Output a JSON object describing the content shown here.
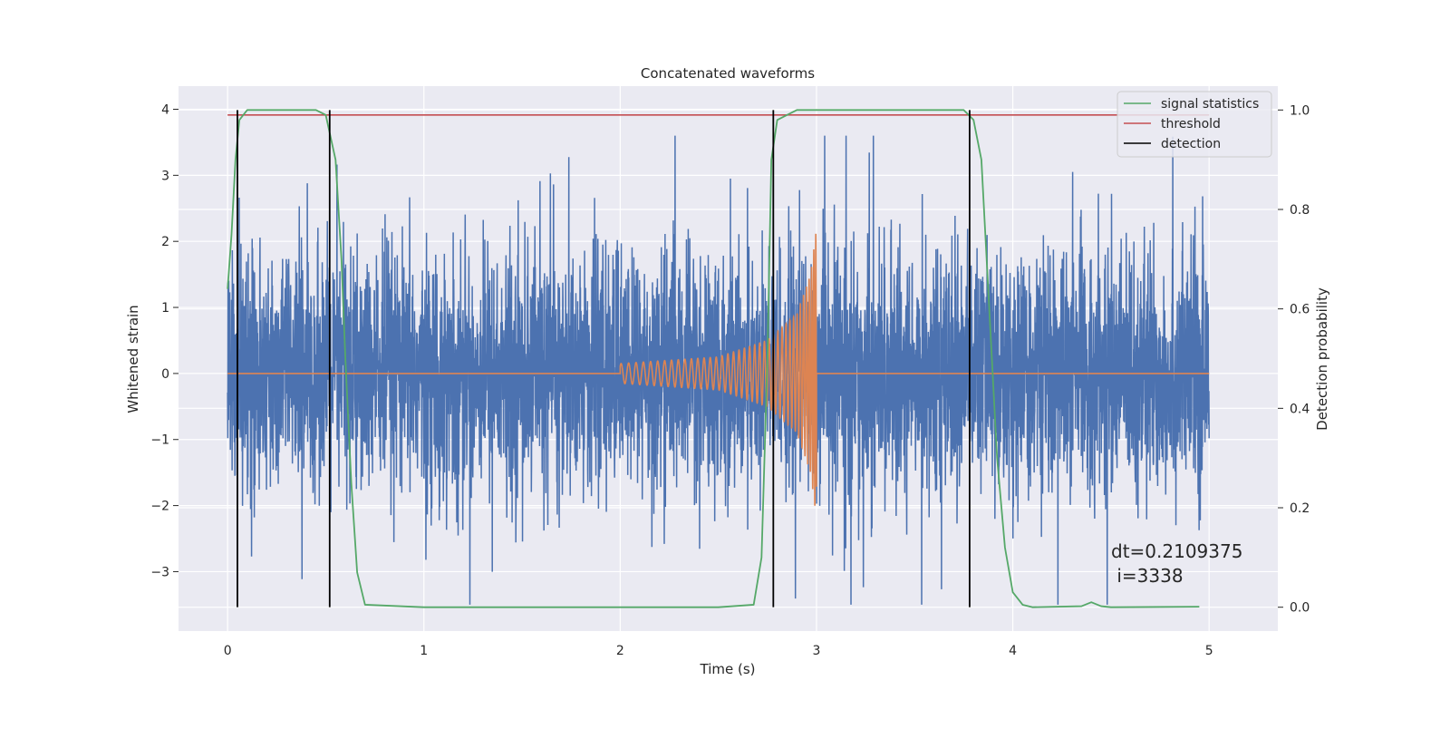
{
  "chart_data": {
    "type": "line",
    "title": "Concatenated waveforms",
    "xlabel": "Time (s)",
    "ylabel": "Whitened strain",
    "ylabel_right": "Detection probability",
    "xlim": [
      -0.25,
      5.35
    ],
    "ylim": [
      -3.9,
      4.35
    ],
    "ylim_right": [
      -0.048,
      1.048
    ],
    "x_ticks": [
      0,
      1,
      2,
      3,
      4,
      5
    ],
    "y_ticks": [
      -3,
      -2,
      -1,
      0,
      1,
      2,
      3,
      4
    ],
    "y_ticks_right": [
      0.0,
      0.2,
      0.4,
      0.6,
      0.8,
      1.0
    ],
    "x_tick_labels": [
      "0",
      "1",
      "2",
      "3",
      "4",
      "5"
    ],
    "y_tick_labels": [
      "−3",
      "−2",
      "−1",
      "0",
      "1",
      "2",
      "3",
      "4"
    ],
    "y_tick_labels_right": [
      "0.0",
      "0.2",
      "0.4",
      "0.6",
      "0.8",
      "1.0"
    ],
    "grid": true,
    "legend_position": "top-right",
    "legend": [
      {
        "label": "signal statistics",
        "color": "#55a868"
      },
      {
        "label": "threshold",
        "color": "#c44e52"
      },
      {
        "label": "detection",
        "color": "#000000"
      }
    ],
    "series": [
      {
        "role": "whitened-strain-noise",
        "color": "#4c72b0",
        "x_range": [
          0,
          5
        ],
        "noise_core_std": 0.85,
        "approx_peak": 3.6,
        "approx_trough": -3.5
      },
      {
        "role": "injected-chirp",
        "color": "#dd8452",
        "x_range": [
          0,
          5
        ],
        "chirp_start": 2.0,
        "chirp_end": 3.0,
        "amplitude_points": [
          [
            2.0,
            0.15
          ],
          [
            2.5,
            0.25
          ],
          [
            2.75,
            0.5
          ],
          [
            2.9,
            0.9
          ],
          [
            2.97,
            1.5
          ],
          [
            3.0,
            2.2
          ]
        ]
      },
      {
        "name": "signal statistics",
        "axis": "right",
        "color": "#55a868",
        "points": [
          [
            0.0,
            0.64
          ],
          [
            0.02,
            0.75
          ],
          [
            0.04,
            0.9
          ],
          [
            0.06,
            0.98
          ],
          [
            0.1,
            1.0
          ],
          [
            0.45,
            1.0
          ],
          [
            0.5,
            0.99
          ],
          [
            0.55,
            0.9
          ],
          [
            0.58,
            0.7
          ],
          [
            0.6,
            0.5
          ],
          [
            0.63,
            0.25
          ],
          [
            0.66,
            0.07
          ],
          [
            0.7,
            0.005
          ],
          [
            1.0,
            0.0
          ],
          [
            2.5,
            0.0
          ],
          [
            2.68,
            0.005
          ],
          [
            2.72,
            0.1
          ],
          [
            2.75,
            0.5
          ],
          [
            2.77,
            0.9
          ],
          [
            2.8,
            0.98
          ],
          [
            2.9,
            1.0
          ],
          [
            3.75,
            1.0
          ],
          [
            3.8,
            0.98
          ],
          [
            3.84,
            0.9
          ],
          [
            3.88,
            0.6
          ],
          [
            3.92,
            0.3
          ],
          [
            3.96,
            0.12
          ],
          [
            4.0,
            0.03
          ],
          [
            4.05,
            0.005
          ],
          [
            4.1,
            0.0
          ],
          [
            4.35,
            0.002
          ],
          [
            4.4,
            0.01
          ],
          [
            4.45,
            0.002
          ],
          [
            4.5,
            0.0
          ],
          [
            4.95,
            0.001
          ]
        ]
      },
      {
        "name": "threshold",
        "axis": "right",
        "color": "#c44e52",
        "value": 0.99,
        "x_range": [
          0,
          5
        ]
      },
      {
        "name": "detection",
        "axis": "right",
        "color": "#000000",
        "x": [
          0.05,
          0.52,
          2.78,
          3.78
        ],
        "y_range": [
          0,
          1.0
        ]
      }
    ],
    "annotation": {
      "lines": [
        "dt=0.2109375",
        " i=3338"
      ],
      "x": 4.5,
      "y": -3.3
    }
  }
}
